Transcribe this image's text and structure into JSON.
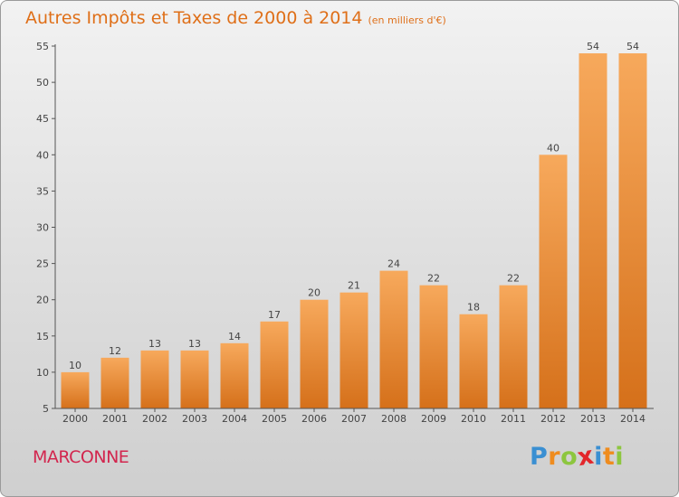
{
  "header": {
    "title": "Autres Impôts et Taxes de 2000 à 2014",
    "subtitle": "(en milliers d'€)"
  },
  "commune": "MARCONNE",
  "logo": {
    "text": "Proxiti",
    "letters": [
      {
        "char": "P",
        "color": "#3a8fd2"
      },
      {
        "char": "r",
        "color": "#ef8c1e"
      },
      {
        "char": "o",
        "color": "#8dc63f"
      },
      {
        "char": "x",
        "color": "#e3262b"
      },
      {
        "char": "i",
        "color": "#3a8fd2"
      },
      {
        "char": "t",
        "color": "#ef8c1e"
      },
      {
        "char": "i",
        "color": "#8dc63f"
      }
    ]
  },
  "colors": {
    "title": "#df6f18",
    "commune": "#d2264e",
    "bar_light": "#f7a95c",
    "bar_dark": "#d5701a"
  },
  "chart_data": {
    "type": "bar",
    "title": "Autres Impôts et Taxes de 2000 à 2014",
    "subtitle": "(en milliers d'€)",
    "categories": [
      "2000",
      "2001",
      "2002",
      "2003",
      "2004",
      "2005",
      "2006",
      "2007",
      "2008",
      "2009",
      "2010",
      "2011",
      "2012",
      "2013",
      "2014"
    ],
    "values": [
      10,
      12,
      13,
      13,
      14,
      17,
      20,
      21,
      24,
      22,
      18,
      22,
      40,
      54,
      54
    ],
    "ylim": [
      5,
      55
    ],
    "yticks": [
      5,
      10,
      15,
      20,
      25,
      30,
      35,
      40,
      45,
      50,
      55
    ],
    "grid": false,
    "data_labels": true
  }
}
